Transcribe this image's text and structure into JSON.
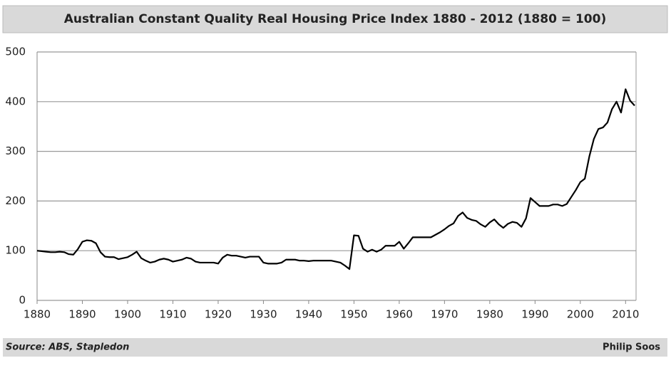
{
  "chart_data": {
    "type": "line",
    "title": "Australian Constant Quality Real Housing Price Index 1880 - 2012 (1880 = 100)",
    "source": "Source: ABS, Stapledon",
    "credit": "Philip Soos",
    "x": [
      1880,
      1881,
      1882,
      1883,
      1884,
      1885,
      1886,
      1887,
      1888,
      1889,
      1890,
      1891,
      1892,
      1893,
      1894,
      1895,
      1896,
      1897,
      1898,
      1899,
      1900,
      1901,
      1902,
      1903,
      1904,
      1905,
      1906,
      1907,
      1908,
      1909,
      1910,
      1911,
      1912,
      1913,
      1914,
      1915,
      1916,
      1917,
      1918,
      1919,
      1920,
      1921,
      1922,
      1923,
      1924,
      1925,
      1926,
      1927,
      1928,
      1929,
      1930,
      1931,
      1932,
      1933,
      1934,
      1935,
      1936,
      1937,
      1938,
      1939,
      1940,
      1941,
      1942,
      1943,
      1944,
      1945,
      1946,
      1947,
      1948,
      1949,
      1950,
      1951,
      1952,
      1953,
      1954,
      1955,
      1956,
      1957,
      1958,
      1959,
      1960,
      1961,
      1962,
      1963,
      1964,
      1965,
      1966,
      1967,
      1968,
      1969,
      1970,
      1971,
      1972,
      1973,
      1974,
      1975,
      1976,
      1977,
      1978,
      1979,
      1980,
      1981,
      1982,
      1983,
      1984,
      1985,
      1986,
      1987,
      1988,
      1989,
      1990,
      1991,
      1992,
      1993,
      1994,
      1995,
      1996,
      1997,
      1998,
      1999,
      2000,
      2001,
      2002,
      2003,
      2004,
      2005,
      2006,
      2007,
      2008,
      2009,
      2010,
      2011,
      2012
    ],
    "series": [
      {
        "color": "#000000",
        "values": [
          100,
          99,
          98,
          97,
          97,
          98,
          97,
          93,
          92,
          103,
          118,
          121,
          120,
          115,
          97,
          88,
          87,
          87,
          83,
          85,
          87,
          92,
          98,
          85,
          80,
          76,
          78,
          82,
          84,
          82,
          78,
          80,
          82,
          86,
          84,
          78,
          76,
          76,
          76,
          76,
          74,
          86,
          92,
          90,
          90,
          88,
          86,
          88,
          88,
          88,
          76,
          74,
          74,
          74,
          76,
          82,
          82,
          82,
          80,
          80,
          79,
          80,
          80,
          80,
          80,
          80,
          78,
          76,
          70,
          63,
          131,
          130,
          104,
          98,
          102,
          98,
          102,
          110,
          110,
          110,
          118,
          104,
          115,
          127,
          127,
          127,
          127,
          127,
          132,
          137,
          143,
          150,
          155,
          170,
          177,
          166,
          162,
          160,
          153,
          148,
          157,
          163,
          153,
          146,
          154,
          158,
          156,
          148,
          165,
          206,
          198,
          190,
          190,
          190,
          193,
          193,
          190,
          194,
          208,
          222,
          238,
          245,
          290,
          325,
          345,
          348,
          358,
          385,
          400,
          378,
          425,
          402,
          392
        ]
      }
    ],
    "xlim": [
      1880,
      2012
    ],
    "xticks": [
      1880,
      1890,
      1900,
      1910,
      1920,
      1930,
      1940,
      1950,
      1960,
      1970,
      1980,
      1990,
      2000,
      2010
    ],
    "ylim": [
      0,
      500
    ],
    "yticks": [
      0,
      100,
      200,
      300,
      400,
      500
    ],
    "grid": true
  }
}
